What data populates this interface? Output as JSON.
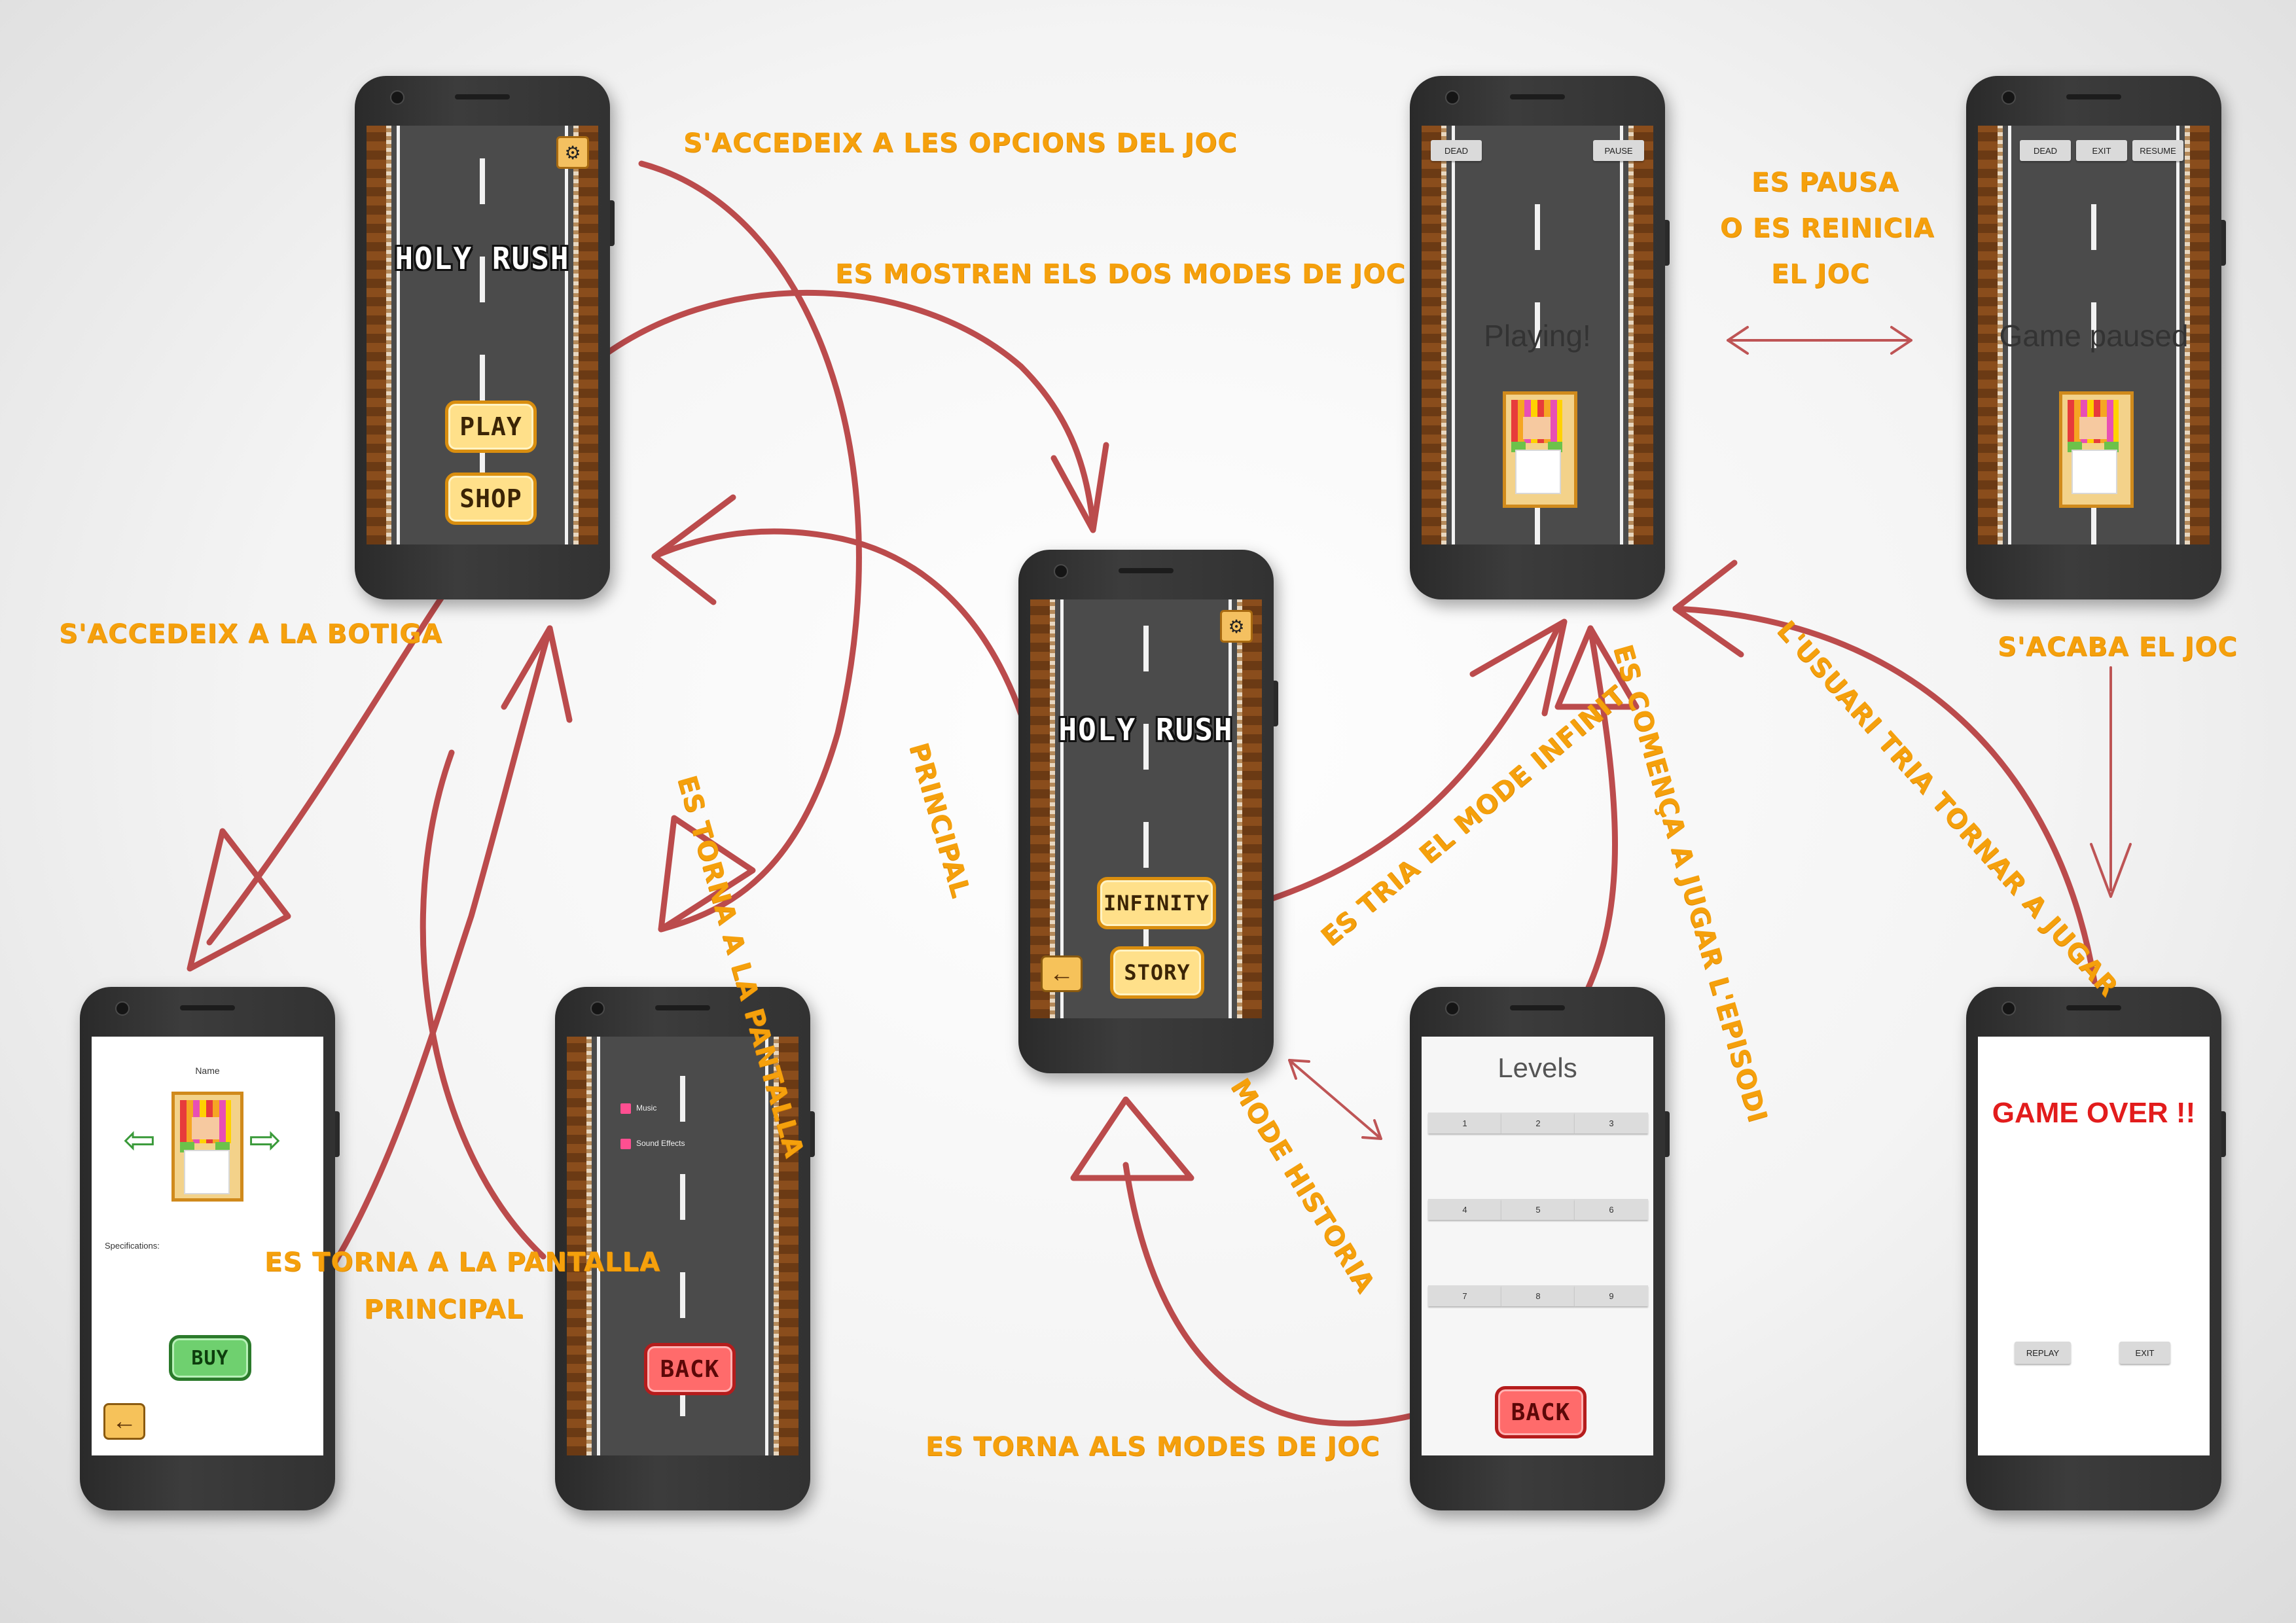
{
  "colors": {
    "annotation": "#f5a00c",
    "arrow": "#b5393a",
    "road": "#4b4b4b",
    "game_over": "#e21c1c"
  },
  "main_menu": {
    "title": "HOLY RUSH",
    "play_label": "PLAY",
    "shop_label": "SHOP",
    "settings_icon": "gear-icon"
  },
  "shop": {
    "name_label": "Name",
    "specifications_label": "Specifications:",
    "buy_label": "BUY",
    "prev_icon": "arrow-left-icon",
    "next_icon": "arrow-right-icon",
    "back_icon": "arrow-left-icon"
  },
  "options": {
    "music_label": "Music",
    "sound_label": "Sound Effects",
    "back_label": "BACK"
  },
  "modes": {
    "title": "HOLY RUSH",
    "infinity_label": "INFINITY",
    "story_label": "STORY"
  },
  "playing": {
    "dead_label": "DEAD",
    "pause_label": "PAUSE",
    "status": "Playing!"
  },
  "paused": {
    "dead_label": "DEAD",
    "exit_label": "EXIT",
    "resume_label": "RESUME",
    "status": "Game paused"
  },
  "levels": {
    "title": "Levels",
    "items": [
      "1",
      "2",
      "3",
      "4",
      "5",
      "6",
      "7",
      "8",
      "9"
    ],
    "back_label": "BACK"
  },
  "game_over": {
    "title": "GAME OVER !!",
    "replay_label": "REPLAY",
    "exit_label": "EXIT"
  },
  "annotations": {
    "options_access": "S'accedeix a les opcions del joc",
    "show_modes": "Es mostren els dos modes de joc",
    "pause_restart_1": "Es pausa",
    "pause_restart_2": "o es reinicia",
    "pause_restart_3": "el joc",
    "shop_access": "S'accedeix a la botiga",
    "back_main_1": "Es torna a la pantalla",
    "back_main_2": "principal",
    "infinite_mode": "Es tria el mode infinit",
    "start_episode": "Es comença a jugar l'episodi",
    "replay": "L'usuari tria tornar a jugar",
    "game_ends": "S'acaba el joc",
    "back_main_shop_1": "Es torna a la pantalla",
    "back_main_shop_2": "principal",
    "story_mode": "Mode historia",
    "back_modes": "Es torna als modes de joc"
  }
}
